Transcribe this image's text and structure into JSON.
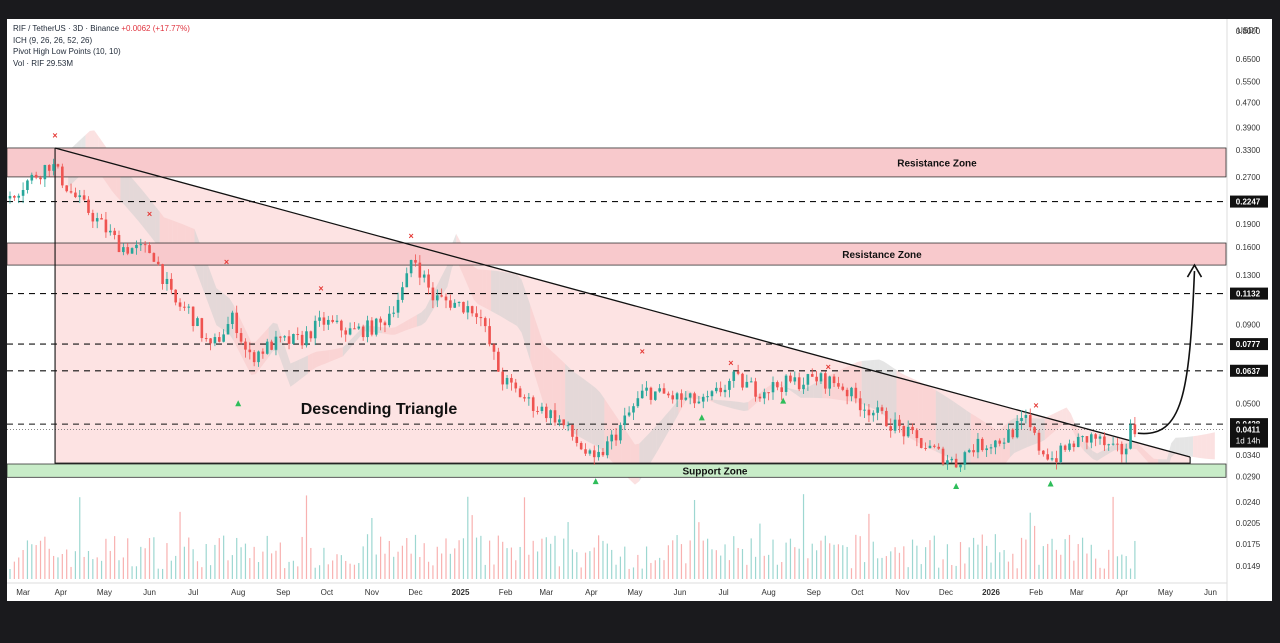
{
  "header": {
    "symbol_line": "RIF / TetherUS · 3D · Binance",
    "change": "+0.0062 (+17.77%)",
    "ich": "ICH (9, 26, 26, 52, 26)",
    "pivots": "Pivot High Low Points (10, 10)",
    "vol": "Vol · RIF  29.53M"
  },
  "currency": "USDT",
  "colors": {
    "up": "#26a69a",
    "down": "#ef5350",
    "resistance_zone": "#f8c9cc",
    "support_zone": "#c8ecc8",
    "triangle_fill": "#fde3e3",
    "cloud_gray": "#cfcfcf",
    "cloud_red": "#f7c9c9",
    "pivot_high": "#e53935",
    "pivot_low": "#26a69a"
  },
  "chart_data": {
    "type": "candlestick",
    "title": "RIF / TetherUS · 3D · Binance",
    "y_scale": "log",
    "ylim": [
      0.0135,
      0.85
    ],
    "y_ticks": [
      0.8,
      0.65,
      0.55,
      0.47,
      0.39,
      0.33,
      0.27,
      0.19,
      0.16,
      0.13,
      0.09,
      0.05,
      0.034,
      0.029,
      0.024,
      0.0205,
      0.0175,
      0.0149
    ],
    "y_tick_labels": [
      "0.8000",
      "0.6500",
      "0.5500",
      "0.4700",
      "0.3900",
      "0.3300",
      "0.2700",
      "0.1900",
      "0.1600",
      "0.1300",
      "0.0900",
      "0.0500",
      "0.0340",
      "0.0290",
      "0.0240",
      "0.0205",
      "0.0175",
      "0.0149"
    ],
    "x_ticks": [
      "Mar",
      "Apr",
      "May",
      "Jun",
      "Jul",
      "Aug",
      "Sep",
      "Oct",
      "Nov",
      "Dec",
      "2025",
      "Feb",
      "Mar",
      "Apr",
      "May",
      "Jun",
      "Jul",
      "Aug",
      "Sep",
      "Oct",
      "Nov",
      "Dec",
      "2026",
      "Feb",
      "Mar",
      "Apr",
      "May",
      "Jun"
    ],
    "x_start": "2024-03",
    "x_end": "2026-06",
    "price_path": [
      [
        "2024-03-01",
        0.23
      ],
      [
        "2024-03-20",
        0.27
      ],
      [
        "2024-04-01",
        0.3
      ],
      [
        "2024-04-15",
        0.24
      ],
      [
        "2024-05-01",
        0.2
      ],
      [
        "2024-05-20",
        0.16
      ],
      [
        "2024-06-10",
        0.155
      ],
      [
        "2024-06-25",
        0.105
      ],
      [
        "2024-07-05",
        0.1
      ],
      [
        "2024-07-20",
        0.075
      ],
      [
        "2024-08-05",
        0.095
      ],
      [
        "2024-08-15",
        0.07
      ],
      [
        "2024-09-01",
        0.078
      ],
      [
        "2024-09-20",
        0.08
      ],
      [
        "2024-10-05",
        0.092
      ],
      [
        "2024-10-25",
        0.085
      ],
      [
        "2024-11-15",
        0.09
      ],
      [
        "2024-12-01",
        0.12
      ],
      [
        "2024-12-06",
        0.152
      ],
      [
        "2024-12-20",
        0.11
      ],
      [
        "2025-01-05",
        0.105
      ],
      [
        "2025-01-20",
        0.1
      ],
      [
        "2025-02-05",
        0.06
      ],
      [
        "2025-02-25",
        0.05
      ],
      [
        "2025-03-15",
        0.045
      ],
      [
        "2025-04-01",
        0.036
      ],
      [
        "2025-04-10",
        0.032
      ],
      [
        "2025-04-25",
        0.04
      ],
      [
        "2025-05-15",
        0.055
      ],
      [
        "2025-06-05",
        0.052
      ],
      [
        "2025-06-25",
        0.05
      ],
      [
        "2025-07-15",
        0.06
      ],
      [
        "2025-08-01",
        0.055
      ],
      [
        "2025-08-20",
        0.058
      ],
      [
        "2025-09-10",
        0.06
      ],
      [
        "2025-09-25",
        0.058
      ],
      [
        "2025-10-10",
        0.05
      ],
      [
        "2025-11-01",
        0.043
      ],
      [
        "2025-11-25",
        0.036
      ],
      [
        "2025-12-15",
        0.032
      ],
      [
        "2025-12-25",
        0.036
      ],
      [
        "2026-01-15",
        0.038
      ],
      [
        "2026-02-01",
        0.044
      ],
      [
        "2026-02-10",
        0.036
      ],
      [
        "2026-02-20",
        0.033
      ],
      [
        "2026-03-05",
        0.037
      ],
      [
        "2026-03-20",
        0.039
      ],
      [
        "2026-04-01",
        0.035
      ],
      [
        "2026-04-10",
        0.035
      ],
      [
        "2026-04-14",
        0.0411
      ]
    ],
    "levels": [
      {
        "label": "0.2247",
        "price": 0.2247
      },
      {
        "label": "0.1132",
        "price": 0.1132
      },
      {
        "label": "0.0777",
        "price": 0.0777
      },
      {
        "label": "0.0637",
        "price": 0.0637
      },
      {
        "label": "0.0428",
        "price": 0.0428
      }
    ],
    "current_price": "0.0411",
    "countdown": "1d 14h",
    "zones": [
      {
        "label": "Resistance Zone",
        "top": 0.335,
        "bottom": 0.27
      },
      {
        "label": "Resistance Zone",
        "top": 0.165,
        "bottom": 0.14
      },
      {
        "label": "Support Zone",
        "top": 0.0318,
        "bottom": 0.0288
      }
    ],
    "pattern_label": "Descending Triangle",
    "triangle": {
      "apex_start": [
        "2024-04-01",
        0.335
      ],
      "base_start": [
        "2024-04-01",
        0.032
      ],
      "apex_end": [
        "2026-05-22",
        0.0335
      ],
      "base_end": [
        "2026-05-22",
        0.032
      ]
    },
    "pivot_highs": [
      [
        "2024-04-01",
        0.36
      ],
      [
        "2024-06-05",
        0.2
      ],
      [
        "2024-07-28",
        0.14
      ],
      [
        "2024-10-01",
        0.115
      ],
      [
        "2024-12-02",
        0.17
      ],
      [
        "2025-05-10",
        0.072
      ],
      [
        "2025-07-10",
        0.066
      ],
      [
        "2025-09-15",
        0.064
      ],
      [
        "2026-02-05",
        0.048
      ]
    ],
    "pivot_lows": [
      [
        "2024-08-05",
        0.05
      ],
      [
        "2025-04-08",
        0.028
      ],
      [
        "2025-06-20",
        0.045
      ],
      [
        "2025-08-15",
        0.051
      ],
      [
        "2025-12-12",
        0.027
      ],
      [
        "2026-02-15",
        0.0275
      ]
    ],
    "projection_arrow": {
      "from": [
        "2026-04-16",
        0.04
      ],
      "to": [
        "2026-05-25",
        0.14
      ]
    }
  }
}
